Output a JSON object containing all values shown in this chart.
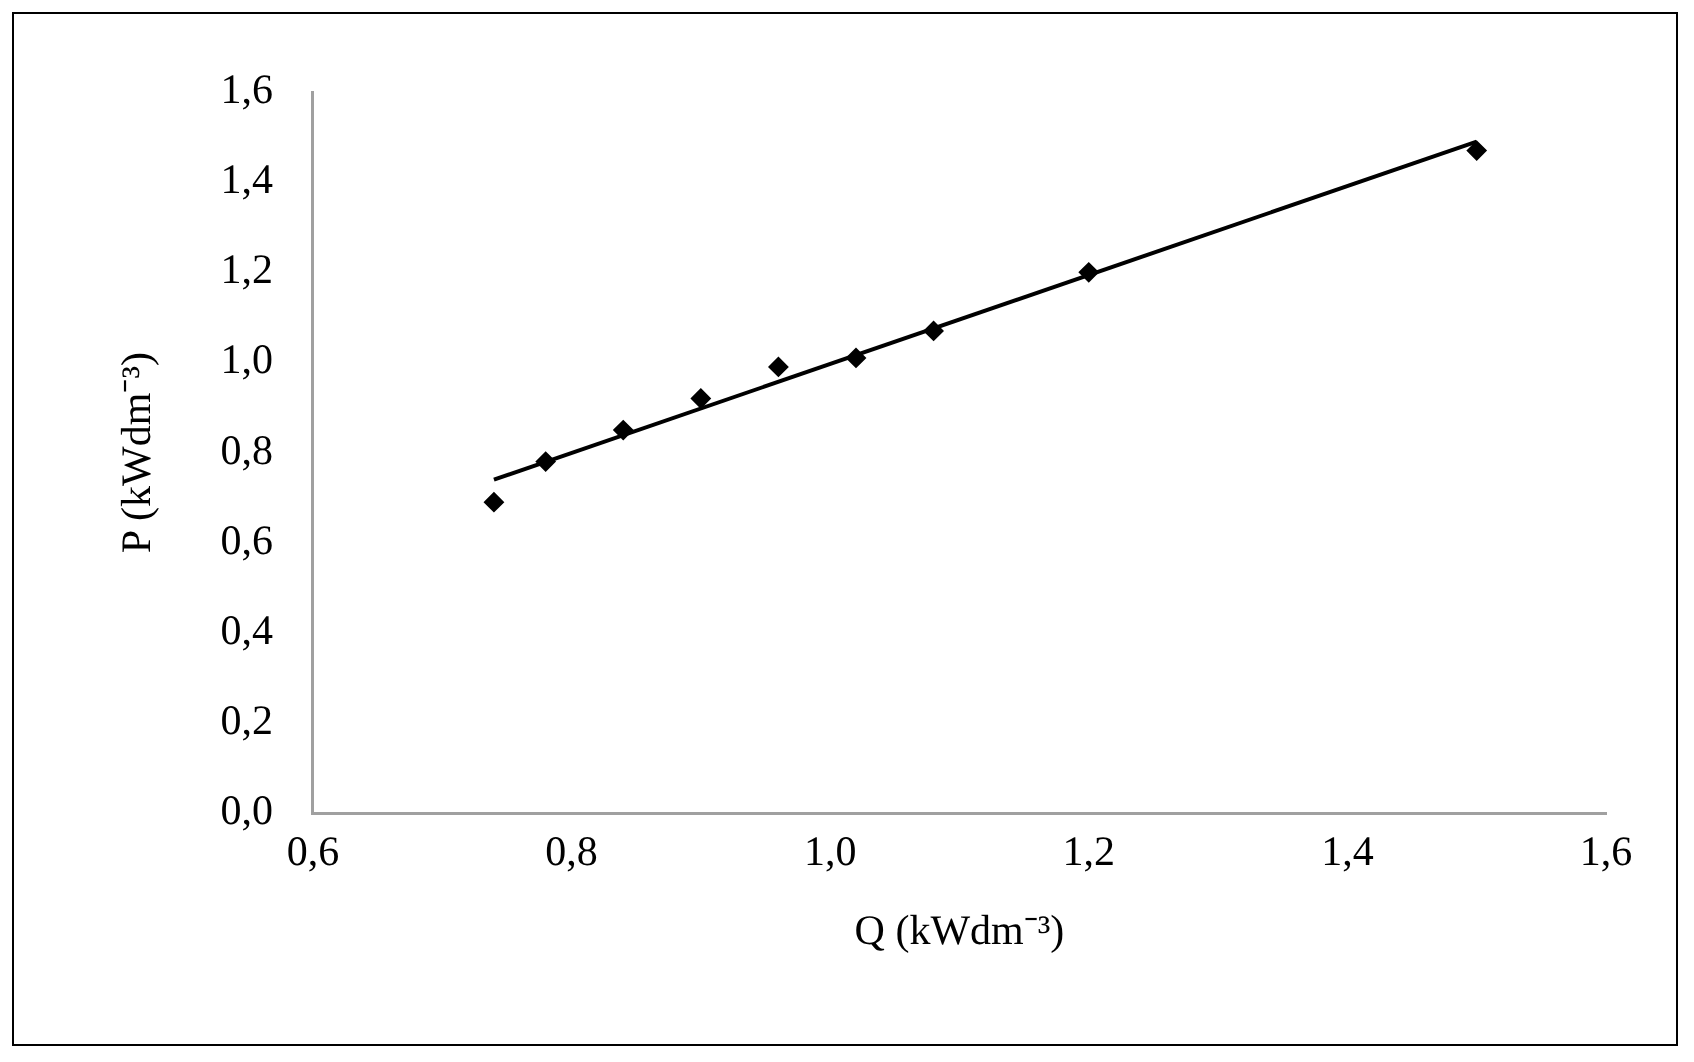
{
  "chart_data": {
    "type": "scatter",
    "xlabel": "Q (kWdm⁻³)",
    "ylabel": "P (kWdm⁻³)",
    "xlim": [
      0.6,
      1.6
    ],
    "xticks": [
      {
        "value": 0.6,
        "label": "0,6"
      },
      {
        "value": 0.8,
        "label": "0,8"
      },
      {
        "value": 1.0,
        "label": "1,0"
      },
      {
        "value": 1.2,
        "label": "1,2"
      },
      {
        "value": 1.4,
        "label": "1,4"
      },
      {
        "value": 1.6,
        "label": "1,6"
      }
    ],
    "ylim": [
      0,
      1.6
    ],
    "yticks": [
      {
        "value": 0,
        "label": "0,0"
      },
      {
        "value": 0.2,
        "label": "0,2"
      },
      {
        "value": 0.4,
        "label": "0,4"
      },
      {
        "value": 0.6,
        "label": "0,6"
      },
      {
        "value": 0.8,
        "label": "0,8"
      },
      {
        "value": 1.0,
        "label": "1,0"
      },
      {
        "value": 1.2,
        "label": "1,2"
      },
      {
        "value": 1.4,
        "label": "1,4"
      },
      {
        "value": 1.6,
        "label": "1,6"
      }
    ],
    "grid": false,
    "legend": false,
    "series": [
      {
        "marker": "diamond",
        "color": "#000000",
        "x": [
          0.74,
          0.78,
          0.84,
          0.9,
          0.96,
          1.02,
          1.08,
          1.2,
          1.5
        ],
        "values": [
          0.69,
          0.78,
          0.85,
          0.92,
          0.99,
          1.01,
          1.07,
          1.2,
          1.47
        ]
      },
      {
        "type": "line",
        "marker": "none",
        "color": "#000000",
        "x": [
          0.74,
          1.5
        ],
        "values": [
          0.74,
          1.49
        ]
      }
    ]
  }
}
